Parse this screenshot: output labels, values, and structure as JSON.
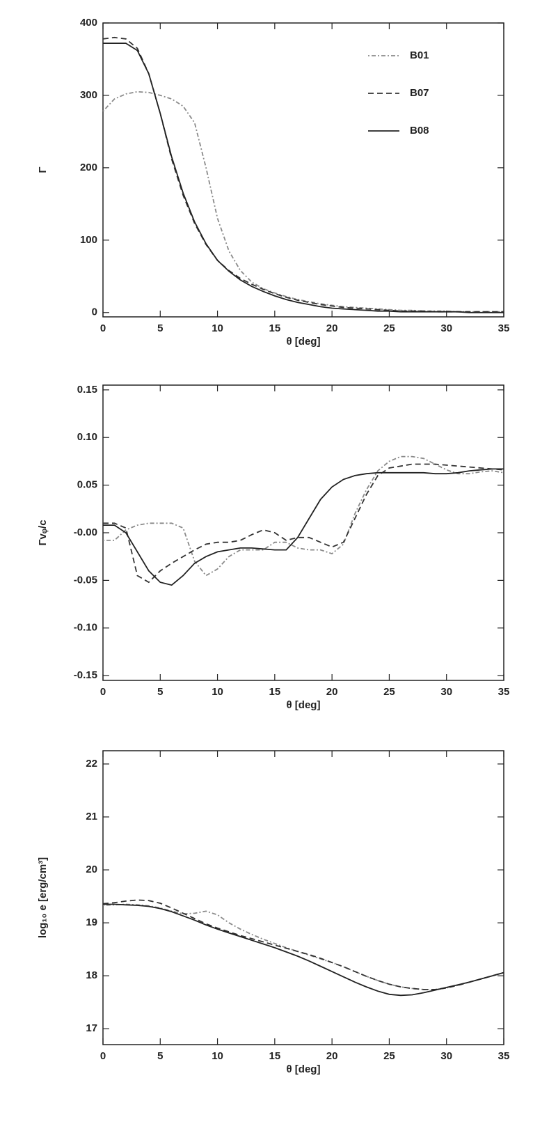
{
  "chart_data": [
    {
      "type": "line",
      "xlabel": "θ [deg]",
      "ylabel": "Γ",
      "x": [
        0,
        1,
        2,
        3,
        4,
        5,
        6,
        7,
        8,
        9,
        10,
        11,
        12,
        13,
        14,
        15,
        16,
        17,
        18,
        19,
        20,
        21,
        22,
        23,
        24,
        25,
        26,
        27,
        28,
        29,
        30,
        31,
        32,
        33,
        34,
        35
      ],
      "xlim": [
        0,
        35
      ],
      "xticks": [
        0,
        5,
        10,
        15,
        20,
        25,
        30,
        35
      ],
      "ylim": [
        -6,
        400
      ],
      "yticks": [
        0,
        100,
        200,
        300,
        400
      ],
      "legend": "upper right",
      "series": [
        {
          "name": "B01",
          "color": "#8a8a8a",
          "style": "dash-dot",
          "values": [
            278,
            295,
            302,
            305,
            304,
            300,
            295,
            285,
            262,
            200,
            130,
            85,
            58,
            42,
            33,
            27,
            22,
            18,
            15,
            12,
            10,
            8,
            7,
            6,
            5,
            4,
            3,
            3,
            2,
            2,
            2,
            1,
            1,
            1,
            1,
            1
          ]
        },
        {
          "name": "B07",
          "color": "#333333",
          "style": "dashed",
          "values": [
            378,
            380,
            378,
            365,
            330,
            275,
            212,
            162,
            123,
            94,
            72,
            58,
            47,
            39,
            32,
            26,
            21,
            17,
            14,
            11,
            9,
            7,
            6,
            5,
            4,
            3,
            2,
            2,
            2,
            1,
            1,
            1,
            1,
            1,
            1,
            1
          ]
        },
        {
          "name": "B08",
          "color": "#222222",
          "style": "solid",
          "values": [
            372,
            372,
            372,
            362,
            330,
            275,
            215,
            165,
            125,
            95,
            72,
            57,
            45,
            36,
            29,
            23,
            18,
            14,
            11,
            8,
            6,
            5,
            4,
            3,
            2,
            2,
            1,
            1,
            1,
            1,
            1,
            1,
            0,
            0,
            0,
            0
          ]
        }
      ]
    },
    {
      "type": "line",
      "xlabel": "θ [deg]",
      "ylabel": "Γvᵩ/c",
      "x": [
        0,
        1,
        2,
        3,
        4,
        5,
        6,
        7,
        8,
        9,
        10,
        11,
        12,
        13,
        14,
        15,
        16,
        17,
        18,
        19,
        20,
        21,
        22,
        23,
        24,
        25,
        26,
        27,
        28,
        29,
        30,
        31,
        32,
        33,
        34,
        35
      ],
      "xlim": [
        0,
        35
      ],
      "xticks": [
        0,
        5,
        10,
        15,
        20,
        25,
        30,
        35
      ],
      "ylim": [
        -0.155,
        0.155
      ],
      "yticks": [
        {
          "value": 0.15,
          "label": "0.15"
        },
        {
          "value": 0.1,
          "label": "0.10"
        },
        {
          "value": 0.05,
          "label": "0.05"
        },
        {
          "value": 0,
          "label": "-0.00"
        },
        {
          "value": -0.05,
          "label": "-0.05"
        },
        {
          "value": -0.1,
          "label": "-0.10"
        },
        {
          "value": -0.15,
          "label": "-0.15"
        }
      ],
      "series": [
        {
          "color": "#8a8a8a",
          "style": "dash-dot",
          "values": [
            -0.008,
            -0.008,
            0.003,
            0.008,
            0.01,
            0.01,
            0.01,
            0.005,
            -0.03,
            -0.045,
            -0.038,
            -0.025,
            -0.018,
            -0.018,
            -0.018,
            -0.01,
            -0.01,
            -0.016,
            -0.018,
            -0.018,
            -0.022,
            -0.012,
            0.02,
            0.045,
            0.065,
            0.075,
            0.08,
            0.08,
            0.078,
            0.072,
            0.066,
            0.062,
            0.062,
            0.064,
            0.065,
            0.063
          ]
        },
        {
          "color": "#333333",
          "style": "dashed",
          "values": [
            0.01,
            0.01,
            0.005,
            -0.045,
            -0.052,
            -0.04,
            -0.032,
            -0.025,
            -0.018,
            -0.012,
            -0.01,
            -0.01,
            -0.008,
            -0.002,
            0.003,
            0,
            -0.008,
            -0.005,
            -0.005,
            -0.01,
            -0.015,
            -0.01,
            0.015,
            0.04,
            0.06,
            0.068,
            0.07,
            0.072,
            0.072,
            0.072,
            0.071,
            0.07,
            0.069,
            0.068,
            0.067,
            0.066
          ]
        },
        {
          "color": "#222222",
          "style": "solid",
          "values": [
            0.008,
            0.008,
            0,
            -0.02,
            -0.04,
            -0.052,
            -0.055,
            -0.045,
            -0.032,
            -0.025,
            -0.02,
            -0.018,
            -0.016,
            -0.016,
            -0.017,
            -0.018,
            -0.018,
            -0.005,
            0.015,
            0.035,
            0.048,
            0.056,
            0.06,
            0.062,
            0.063,
            0.063,
            0.063,
            0.063,
            0.063,
            0.062,
            0.062,
            0.063,
            0.065,
            0.066,
            0.067,
            0.067
          ]
        }
      ]
    },
    {
      "type": "line",
      "xlabel": "θ [deg]",
      "ylabel": "log₁₀ e [erg/cm³]",
      "x": [
        0,
        1,
        2,
        3,
        4,
        5,
        6,
        7,
        8,
        9,
        10,
        11,
        12,
        13,
        14,
        15,
        16,
        17,
        18,
        19,
        20,
        21,
        22,
        23,
        24,
        25,
        26,
        27,
        28,
        29,
        30,
        31,
        32,
        33,
        34,
        35
      ],
      "xlim": [
        0,
        35
      ],
      "xticks": [
        0,
        5,
        10,
        15,
        20,
        25,
        30,
        35
      ],
      "ylim": [
        16.7,
        22.25
      ],
      "yticks": [
        17,
        18,
        19,
        20,
        21,
        22
      ],
      "series": [
        {
          "color": "#8a8a8a",
          "style": "dash-dot",
          "values": [
            19.33,
            19.34,
            19.35,
            19.34,
            19.32,
            19.28,
            19.22,
            19.17,
            19.18,
            19.22,
            19.15,
            19.0,
            18.88,
            18.78,
            18.69,
            18.61,
            18.53,
            18.46,
            18.39,
            18.32,
            18.25,
            18.17,
            18.08,
            17.99,
            17.91,
            17.84,
            17.79,
            17.76,
            17.74,
            17.74,
            17.77,
            17.82,
            17.88,
            17.94,
            18.0,
            18.06
          ]
        },
        {
          "color": "#333333",
          "style": "dashed",
          "values": [
            19.36,
            19.38,
            19.41,
            19.43,
            19.42,
            19.37,
            19.28,
            19.18,
            19.08,
            18.98,
            18.9,
            18.83,
            18.76,
            18.7,
            18.64,
            18.58,
            18.52,
            18.46,
            18.4,
            18.33,
            18.25,
            18.17,
            18.08,
            17.99,
            17.91,
            17.84,
            17.79,
            17.76,
            17.74,
            17.74,
            17.77,
            17.82,
            17.88,
            17.94,
            18.0,
            18.06
          ]
        },
        {
          "color": "#222222",
          "style": "solid",
          "values": [
            19.35,
            19.35,
            19.34,
            19.33,
            19.31,
            19.27,
            19.21,
            19.13,
            19.05,
            18.96,
            18.88,
            18.81,
            18.74,
            18.67,
            18.6,
            18.53,
            18.45,
            18.37,
            18.28,
            18.18,
            18.08,
            17.98,
            17.88,
            17.79,
            17.71,
            17.65,
            17.63,
            17.64,
            17.68,
            17.73,
            17.78,
            17.83,
            17.88,
            17.94,
            18.0,
            18.06
          ]
        }
      ]
    }
  ]
}
